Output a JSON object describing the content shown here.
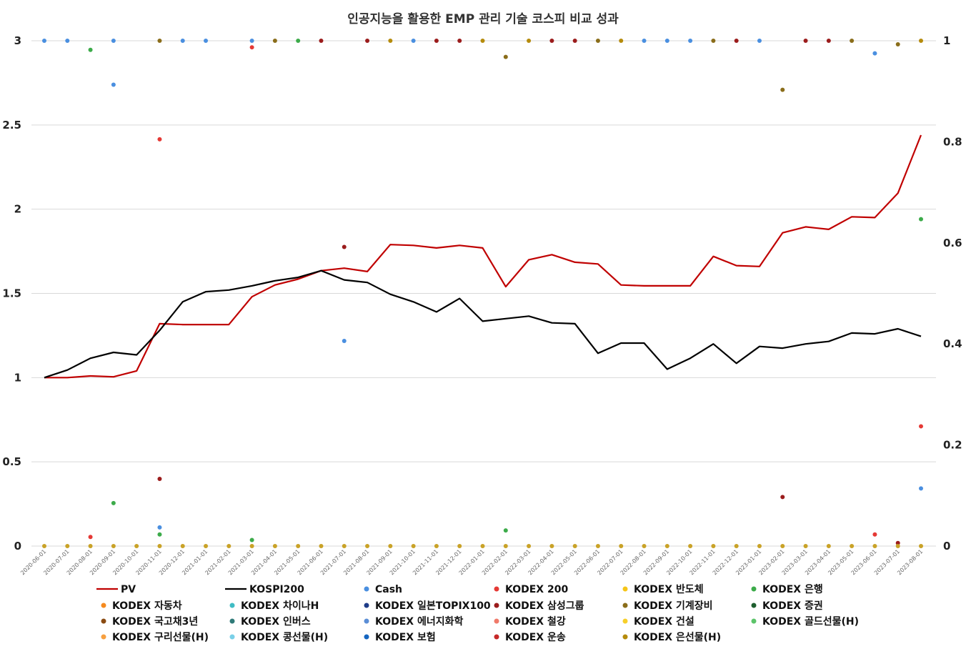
{
  "chart_data": {
    "type": "line",
    "title": "인공지능을 활용한 EMP 관리 기술 코스피 비교 성과",
    "xlabel": "",
    "ylabel": "",
    "y_left_lim": [
      0,
      3
    ],
    "y_left_ticks": [
      "0",
      "0.5",
      "1",
      "1.5",
      "2",
      "2.5",
      "3"
    ],
    "y_right_lim": [
      0,
      1
    ],
    "y_right_ticks": [
      "0",
      "0.2",
      "0.4",
      "0.6",
      "0.8",
      "1"
    ],
    "grid": "horizontal",
    "legend_position": "bottom",
    "x": [
      "2020-06-01",
      "2020-07-01",
      "2020-08-01",
      "2020-09-01",
      "2020-10-01",
      "2020-11-01",
      "2020-12-01",
      "2021-01-01",
      "2021-02-01",
      "2021-03-01",
      "2021-04-01",
      "2021-05-01",
      "2021-06-01",
      "2021-07-01",
      "2021-08-01",
      "2021-09-01",
      "2021-10-01",
      "2021-11-01",
      "2021-12-01",
      "2022-01-01",
      "2022-02-01",
      "2022-03-01",
      "2022-04-01",
      "2022-05-01",
      "2022-06-01",
      "2022-07-01",
      "2022-08-01",
      "2022-09-01",
      "2022-10-01",
      "2022-11-01",
      "2022-12-01",
      "2023-01-01",
      "2023-02-01",
      "2023-03-01",
      "2023-04-01",
      "2023-05-01",
      "2023-06-01",
      "2023-07-01",
      "2023-08-01"
    ],
    "series": [
      {
        "name": "PV",
        "type": "line",
        "axis": "left",
        "color": "#c00000",
        "values": [
          1.0,
          1.0,
          1.01,
          1.005,
          1.04,
          1.32,
          1.315,
          1.315,
          1.315,
          1.48,
          1.55,
          1.585,
          1.635,
          1.65,
          1.63,
          1.79,
          1.785,
          1.77,
          1.785,
          1.77,
          1.54,
          1.7,
          1.73,
          1.685,
          1.675,
          1.55,
          1.545,
          1.545,
          1.545,
          1.72,
          1.665,
          1.66,
          1.86,
          1.895,
          1.88,
          1.955,
          1.95,
          2.095,
          2.44
        ]
      },
      {
        "name": "KOSPI200",
        "type": "line",
        "axis": "left",
        "color": "#000000",
        "values": [
          1.0,
          1.045,
          1.115,
          1.15,
          1.135,
          1.28,
          1.45,
          1.51,
          1.52,
          1.545,
          1.575,
          1.595,
          1.635,
          1.58,
          1.565,
          1.495,
          1.45,
          1.39,
          1.47,
          1.335,
          1.35,
          1.365,
          1.325,
          1.32,
          1.145,
          1.205,
          1.205,
          1.05,
          1.115,
          1.2,
          1.085,
          1.185,
          1.175,
          1.2,
          1.215,
          1.265,
          1.26,
          1.29,
          1.245
        ]
      }
    ],
    "scatter_series": [
      {
        "name": "Cash",
        "color": "#4a8fe0",
        "axis": "right",
        "points": [
          [
            0,
            1
          ],
          [
            1,
            1
          ],
          [
            3,
            0.913
          ],
          [
            3,
            1
          ],
          [
            5,
            0.037
          ],
          [
            6,
            1
          ],
          [
            7,
            1
          ],
          [
            9,
            1
          ],
          [
            13,
            0.406
          ],
          [
            16,
            1
          ],
          [
            26,
            1
          ],
          [
            27,
            1
          ],
          [
            28,
            1
          ],
          [
            31,
            1
          ],
          [
            36,
            0.975
          ],
          [
            38,
            0.114
          ]
        ]
      },
      {
        "name": "KODEX 200",
        "color": "#e53935",
        "axis": "right",
        "points": [
          [
            2,
            0.018
          ],
          [
            5,
            0.805
          ],
          [
            9,
            0.987
          ],
          [
            36,
            0.023
          ],
          [
            38,
            0.237
          ]
        ]
      },
      {
        "name": "KODEX 반도체",
        "color": "#f5c518",
        "axis": "right",
        "points": []
      },
      {
        "name": "KODEX 은행",
        "color": "#3cab4a",
        "axis": "right",
        "points": [
          [
            2,
            0.982
          ],
          [
            3,
            0.085
          ],
          [
            5,
            0.023
          ],
          [
            9,
            0.012
          ],
          [
            11,
            1
          ],
          [
            20,
            0.031
          ],
          [
            38,
            0.647
          ]
        ]
      },
      {
        "name": "KODEX 자동차",
        "color": "#f58a1f",
        "axis": "right",
        "points": []
      },
      {
        "name": "KODEX 차이나H",
        "color": "#3fbcc4",
        "axis": "right",
        "points": []
      },
      {
        "name": "KODEX 일본TOPIX100",
        "color": "#1f3c88",
        "axis": "right",
        "points": []
      },
      {
        "name": "KODEX 삼성그룹",
        "color": "#9b1c1c",
        "axis": "right",
        "points": [
          [
            5,
            0.133
          ],
          [
            12,
            1
          ],
          [
            13,
            0.592
          ],
          [
            14,
            1
          ],
          [
            17,
            1
          ],
          [
            18,
            1
          ],
          [
            22,
            1
          ],
          [
            23,
            1
          ],
          [
            30,
            1
          ],
          [
            32,
            0.097
          ],
          [
            33,
            1
          ],
          [
            34,
            1
          ],
          [
            37,
            0.006
          ]
        ]
      },
      {
        "name": "KODEX 기계장비",
        "color": "#8a6d1a",
        "axis": "right",
        "points": [
          [
            5,
            1
          ],
          [
            10,
            1
          ],
          [
            20,
            0.968
          ],
          [
            24,
            1
          ],
          [
            29,
            1
          ],
          [
            32,
            0.903
          ],
          [
            35,
            1
          ],
          [
            37,
            0.993
          ]
        ]
      },
      {
        "name": "KODEX 증권",
        "color": "#1e5e2e",
        "axis": "right",
        "points": []
      },
      {
        "name": "KODEX 국고채3년",
        "color": "#8a4b12",
        "axis": "right",
        "points": []
      },
      {
        "name": "KODEX 인버스",
        "color": "#2f7a78",
        "axis": "right",
        "points": []
      },
      {
        "name": "KODEX 에너지화학",
        "color": "#5b8ed6",
        "axis": "right",
        "points": []
      },
      {
        "name": "KODEX 철강",
        "color": "#f07a6a",
        "axis": "right",
        "points": []
      },
      {
        "name": "KODEX 건설",
        "color": "#f7cf2a",
        "axis": "right",
        "points": []
      },
      {
        "name": "KODEX 골드선물(H)",
        "color": "#5cc46a",
        "axis": "right",
        "points": []
      },
      {
        "name": "KODEX 구리선물(H)",
        "color": "#f7a040",
        "axis": "right",
        "points": []
      },
      {
        "name": "KODEX 콩선물(H)",
        "color": "#7ad0e8",
        "axis": "right",
        "points": []
      },
      {
        "name": "KODEX 보험",
        "color": "#1565c0",
        "axis": "right",
        "points": []
      },
      {
        "name": "KODEX 운송",
        "color": "#c62828",
        "axis": "right",
        "points": []
      },
      {
        "name": "KODEX 은선물(H)",
        "color": "#b58b0c",
        "axis": "right",
        "points": [
          [
            15,
            1
          ],
          [
            19,
            1
          ],
          [
            21,
            1
          ],
          [
            25,
            1
          ],
          [
            38,
            1
          ]
        ]
      }
    ]
  }
}
